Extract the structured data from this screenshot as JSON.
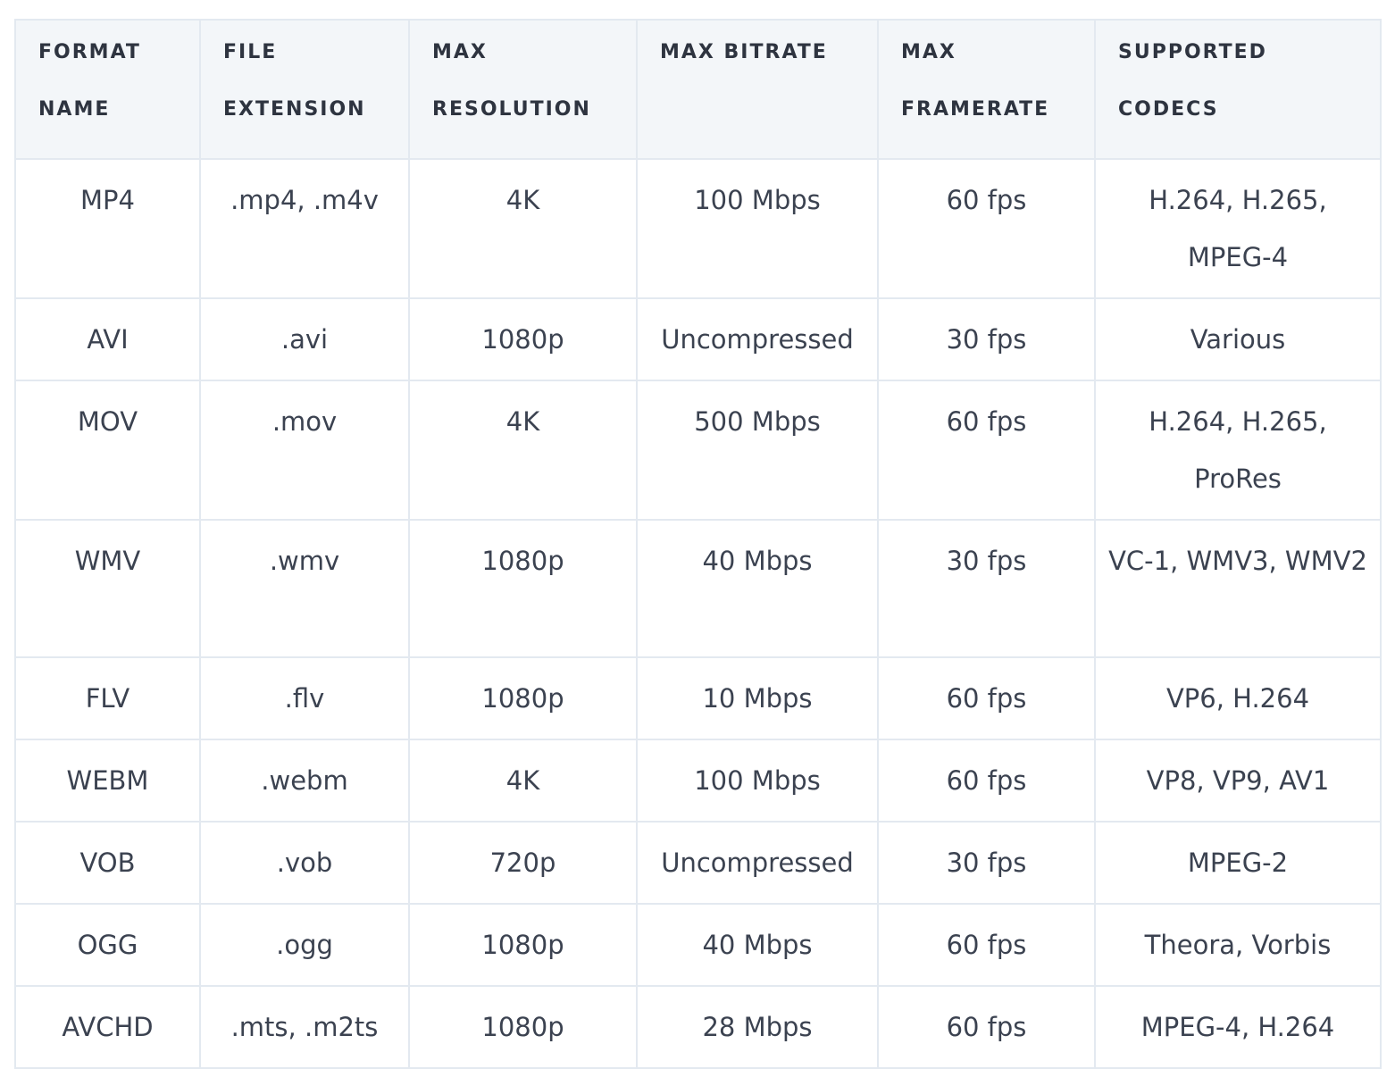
{
  "table": {
    "headers": [
      "FORMAT NAME",
      "FILE EXTENSION",
      "MAX RESOLUTION",
      "MAX BITRATE",
      "MAX FRAMERATE",
      "SUPPORTED CODECS"
    ],
    "rows": [
      [
        "MP4",
        ".mp4, .m4v",
        "4K",
        "100 Mbps",
        "60 fps",
        "H.264, H.265, MPEG-4"
      ],
      [
        "AVI",
        ".avi",
        "1080p",
        "Uncompressed",
        "30 fps",
        "Various"
      ],
      [
        "MOV",
        ".mov",
        "4K",
        "500 Mbps",
        "60 fps",
        "H.264, H.265, ProRes"
      ],
      [
        "WMV",
        ".wmv",
        "1080p",
        "40 Mbps",
        "30 fps",
        "VC-1, WMV3, WMV2"
      ],
      [
        "FLV",
        ".flv",
        "1080p",
        "10 Mbps",
        "60 fps",
        "VP6, H.264"
      ],
      [
        "WEBM",
        ".webm",
        "4K",
        "100 Mbps",
        "60 fps",
        "VP8, VP9, AV1"
      ],
      [
        "VOB",
        ".vob",
        "720p",
        "Uncompressed",
        "30 fps",
        "MPEG-2"
      ],
      [
        "OGG",
        ".ogg",
        "1080p",
        "40 Mbps",
        "60 fps",
        "Theora, Vorbis"
      ],
      [
        "AVCHD",
        ".mts, .m2ts",
        "1080p",
        "28 Mbps",
        "60 fps",
        "MPEG-4, H.264"
      ]
    ]
  }
}
